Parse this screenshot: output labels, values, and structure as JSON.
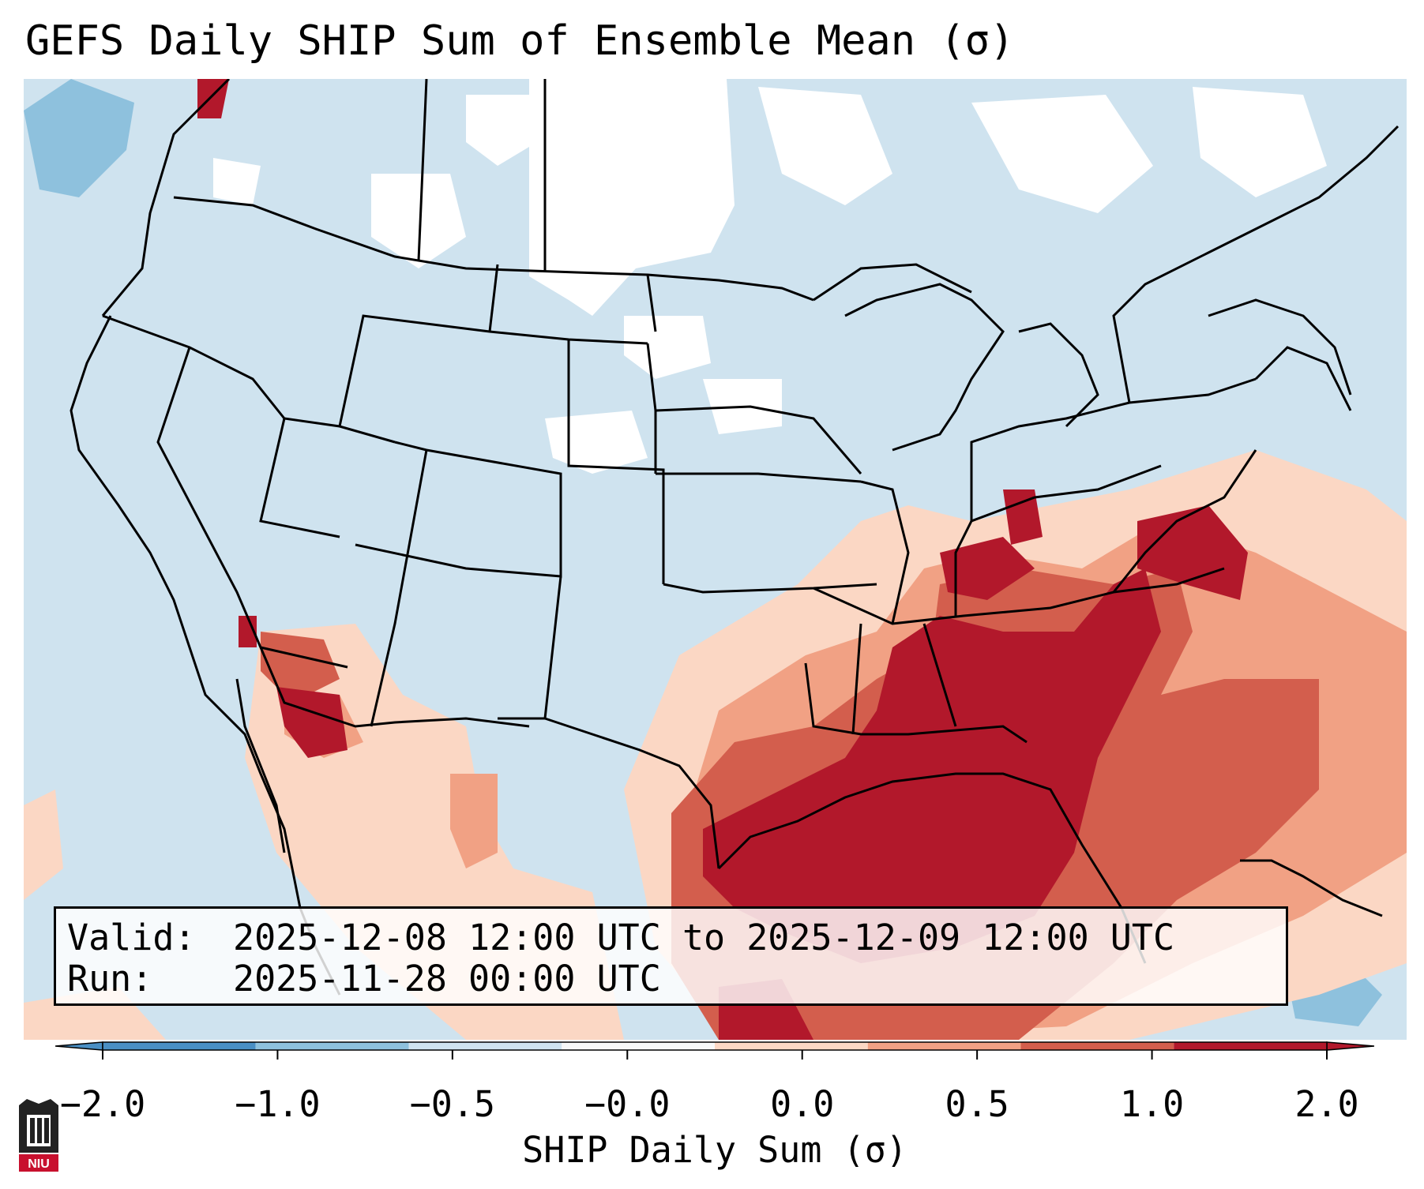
{
  "title": "GEFS Daily SHIP Sum of Ensemble Mean (σ)",
  "info": {
    "valid_label": "Valid:",
    "valid_value": "2025-12-08 12:00 UTC to 2025-12-09 12:00 UTC",
    "run_label": "Run:",
    "run_value": "2025-11-28 00:00 UTC"
  },
  "colorbar": {
    "label": "SHIP Daily Sum (σ)",
    "ticks": [
      "−2.0",
      "−1.0",
      "−0.5",
      "−0.0",
      "0.0",
      "0.5",
      "1.0",
      "2.0"
    ],
    "colors": [
      "#4a8fc4",
      "#8ec1dd",
      "#cfe3ef",
      "#f7f8f8",
      "#fbd7c4",
      "#f1a184",
      "#d35e4d",
      "#b2182b"
    ],
    "extend": "both"
  },
  "map": {
    "projection": "Lambert Conformal (Contiguous United States)",
    "background_color": "#cfe3ef",
    "field_colors": {
      "below_neg_1": "#8ec1dd",
      "neg_0_5_to_0": "#cfe3ef",
      "zero": "#ffffff",
      "0_to_0_5": "#fbd7c4",
      "0_5_to_1": "#f1a184",
      "1_to_2": "#d35e4d",
      "above_2": "#b2182b"
    }
  },
  "logo": {
    "text": "NIU"
  }
}
